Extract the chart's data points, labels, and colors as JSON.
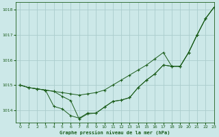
{
  "title": "Graphe pression niveau de la mer (hPa)",
  "background_color": "#cce8e8",
  "grid_color": "#aacccc",
  "line_color": "#1a5c1a",
  "marker_color": "#1a5c1a",
  "xlim": [
    -0.5,
    23
  ],
  "ylim": [
    1013.5,
    1018.3
  ],
  "yticks": [
    1014,
    1015,
    1016,
    1017,
    1018
  ],
  "xticks": [
    0,
    1,
    2,
    3,
    4,
    5,
    6,
    7,
    8,
    9,
    10,
    11,
    12,
    13,
    14,
    15,
    16,
    17,
    18,
    19,
    20,
    21,
    22,
    23
  ],
  "series": [
    [
      1015.0,
      1014.9,
      1014.85,
      1014.8,
      1014.75,
      1014.7,
      1014.65,
      1014.6,
      1014.65,
      1014.7,
      1014.8,
      1015.0,
      1015.2,
      1015.4,
      1015.6,
      1015.8,
      1016.05,
      1016.3,
      1015.75,
      1015.75,
      1016.3,
      1017.0,
      1017.65,
      1018.1
    ],
    [
      1015.0,
      1014.9,
      1014.85,
      1014.8,
      1014.15,
      1014.05,
      1013.78,
      1013.68,
      1013.88,
      1013.88,
      1014.12,
      1014.35,
      1014.4,
      1014.5,
      1014.9,
      1015.2,
      1015.45,
      1015.8,
      1015.75,
      1015.75,
      1016.3,
      1017.0,
      1017.65,
      1018.1
    ],
    [
      1015.0,
      1014.9,
      1014.85,
      1014.8,
      1014.75,
      1014.55,
      1014.38,
      1013.65,
      1013.85,
      1013.88,
      1014.12,
      1014.35,
      1014.4,
      1014.5,
      1014.9,
      1015.2,
      1015.45,
      1015.8,
      1015.75,
      1015.75,
      1016.3,
      1017.0,
      1017.65,
      1018.1
    ]
  ]
}
